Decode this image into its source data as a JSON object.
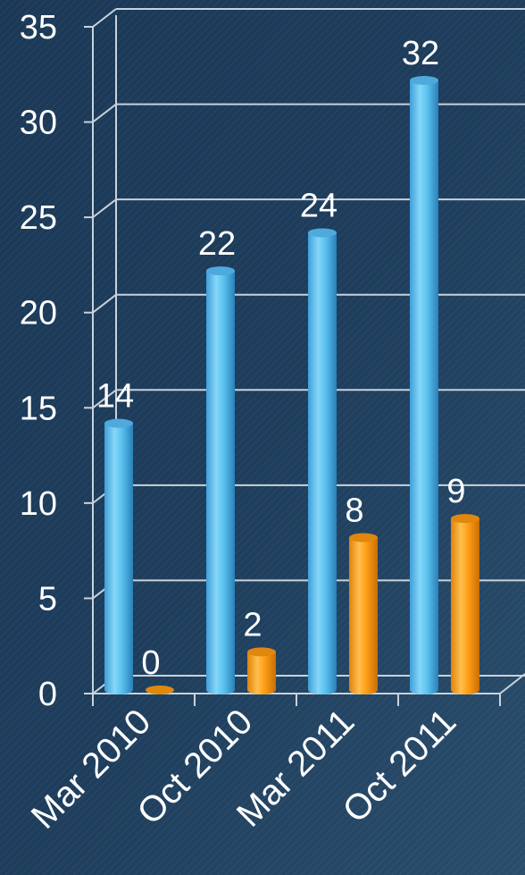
{
  "chart_data": {
    "type": "bar",
    "style": "3d-cylinder",
    "categories": [
      "Mar 2010",
      "Oct 2010",
      "Mar 2011",
      "Oct 2011"
    ],
    "series": [
      {
        "values": [
          14,
          22,
          24,
          32
        ],
        "color": "#5bc3f0"
      },
      {
        "values": [
          0,
          2,
          8,
          9
        ],
        "color": "#ff9e16"
      }
    ],
    "data_labels": [
      [
        "14",
        "22",
        "24",
        "32"
      ],
      [
        "0",
        "2",
        "8",
        "9"
      ]
    ],
    "yticks": [
      "0",
      "5",
      "10",
      "15",
      "20",
      "25",
      "30",
      "35"
    ],
    "ylim": [
      0,
      35
    ],
    "grid": true,
    "legend": "none",
    "title": "",
    "xlabel": "",
    "ylabel": ""
  },
  "colors": {
    "background": "#1d3a57",
    "gridline": "#c8d2dc",
    "text": "#ffffff"
  }
}
